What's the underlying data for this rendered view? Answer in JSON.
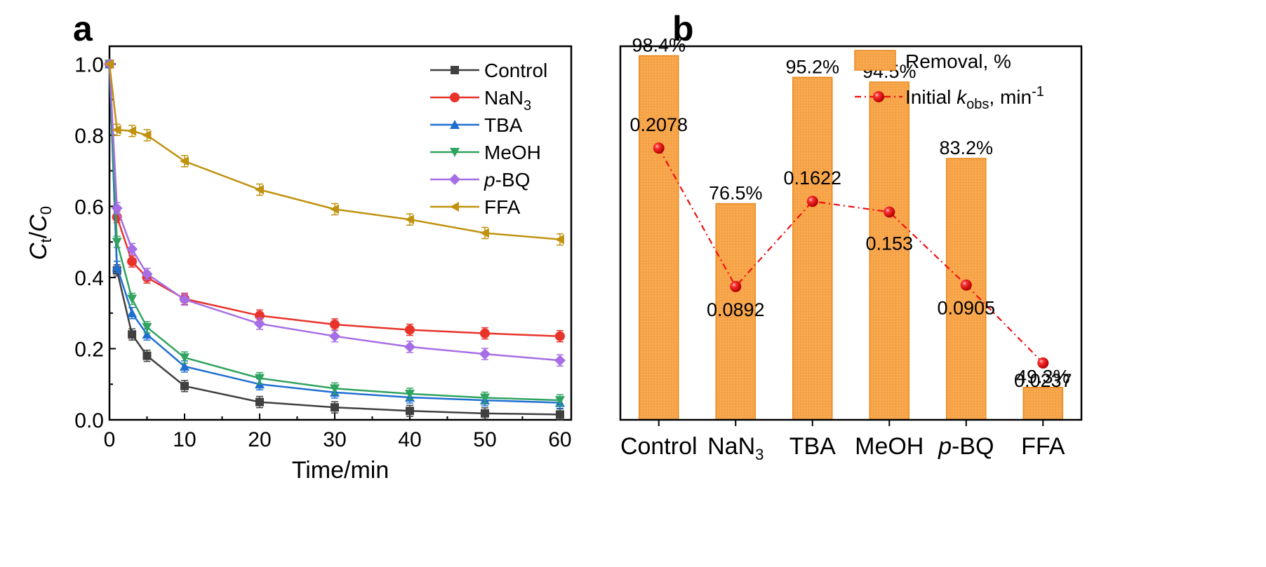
{
  "panels": {
    "a": {
      "label": "a"
    },
    "b": {
      "label": "b"
    }
  },
  "chart_data": [
    {
      "panel": "a",
      "type": "line",
      "title": "",
      "xlabel": "Time/min",
      "ylabel": {
        "main": "C",
        "sub": "t",
        "sep": "/",
        "main2": "C",
        "sub2": "0"
      },
      "xlim": [
        0,
        61.5
      ],
      "ylim": [
        0,
        1.05
      ],
      "xticks": [
        0,
        10,
        20,
        30,
        40,
        50,
        60
      ],
      "yticks": [
        0.0,
        0.2,
        0.4,
        0.6,
        0.8,
        1.0
      ],
      "ytick_labels": [
        "0.0",
        "0.2",
        "0.4",
        "0.6",
        "0.8",
        "1.0"
      ],
      "grid": false,
      "legend_position": "top-right",
      "x": [
        0,
        1,
        3,
        5,
        10,
        20,
        30,
        40,
        50,
        60
      ],
      "series": [
        {
          "name": "Control",
          "prefix": "",
          "base": "Control",
          "sub": "",
          "color": "#404040",
          "marker": "square",
          "values": [
            1.0,
            0.42,
            0.24,
            0.18,
            0.095,
            0.05,
            0.035,
            0.025,
            0.018,
            0.015
          ]
        },
        {
          "name": "NaN3",
          "prefix": "",
          "base": "NaN",
          "sub": "3",
          "color": "#e8332b",
          "marker": "circle",
          "values": [
            1.0,
            0.57,
            0.445,
            0.4,
            0.34,
            0.293,
            0.268,
            0.253,
            0.243,
            0.235
          ]
        },
        {
          "name": "TBA",
          "prefix": "",
          "base": "TBA",
          "sub": "",
          "color": "#1f6fd1",
          "marker": "triangle-up",
          "values": [
            1.0,
            0.43,
            0.3,
            0.24,
            0.15,
            0.1,
            0.077,
            0.063,
            0.055,
            0.048
          ]
        },
        {
          "name": "MeOH",
          "prefix": "",
          "base": "MeOH",
          "sub": "",
          "color": "#2fa35f",
          "marker": "triangle-down",
          "values": [
            1.0,
            0.5,
            0.34,
            0.26,
            0.175,
            0.117,
            0.088,
            0.073,
            0.062,
            0.055
          ]
        },
        {
          "name": "p-BQ",
          "prefix": "p",
          "base": "-BQ",
          "sub": "",
          "color": "#a66ee6",
          "marker": "diamond",
          "values": [
            1.0,
            0.595,
            0.48,
            0.41,
            0.338,
            0.27,
            0.235,
            0.205,
            0.185,
            0.167
          ]
        },
        {
          "name": "FFA",
          "prefix": "",
          "base": "FFA",
          "sub": "",
          "color": "#c0920f",
          "marker": "triangle-left",
          "values": [
            1.0,
            0.815,
            0.812,
            0.8,
            0.727,
            0.647,
            0.592,
            0.563,
            0.525,
            0.507
          ]
        }
      ]
    },
    {
      "panel": "b",
      "type": "bar",
      "title": "",
      "categories": [
        {
          "prefix": "",
          "base": "Control",
          "sub": ""
        },
        {
          "prefix": "",
          "base": "NaN",
          "sub": "3"
        },
        {
          "prefix": "",
          "base": "TBA",
          "sub": ""
        },
        {
          "prefix": "",
          "base": "MeOH",
          "sub": ""
        },
        {
          "prefix": "p",
          "base": "-BQ",
          "sub": ""
        },
        {
          "prefix": "",
          "base": "FFA",
          "sub": ""
        }
      ],
      "removal_ylim": [
        44.5,
        99.8
      ],
      "kobs_ylim": [
        -0.025,
        0.295
      ],
      "grid": false,
      "legend_position": "top-right",
      "series": [
        {
          "name": "Removal, %",
          "type": "bar",
          "color": "#f7a54a",
          "edge": "#e88a1f",
          "values": [
            98.4,
            76.5,
            95.2,
            94.5,
            83.2,
            49.3
          ],
          "labels": [
            "98.4%",
            "76.5%",
            "95.2%",
            "94.5%",
            "83.2%",
            "49.3%"
          ]
        },
        {
          "name": "Initial kobs, min-1",
          "type": "line",
          "color": "#ee1111",
          "legend": {
            "before": "Initial ",
            "k": "k",
            "ksub": "obs",
            "after": ", min",
            "sup": "-1"
          },
          "values": [
            0.2078,
            0.0892,
            0.1622,
            0.153,
            0.0905,
            0.0237
          ],
          "labels": [
            "0.2078",
            "0.0892",
            "0.1622",
            "0.153",
            "0.0905",
            "0.0237"
          ]
        }
      ]
    }
  ]
}
